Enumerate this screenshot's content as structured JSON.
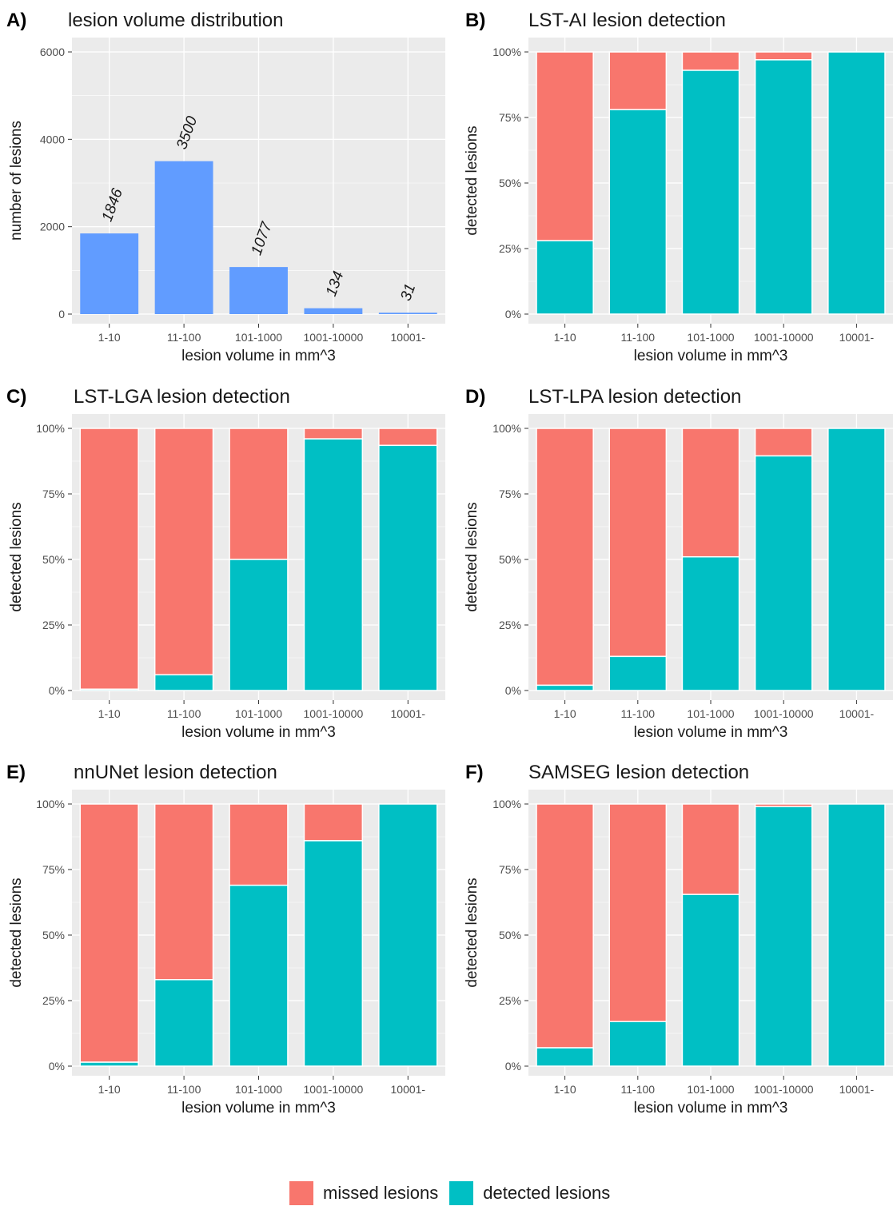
{
  "colors": {
    "missed": "#F8766D",
    "detected": "#00BFC4",
    "count_bar": "#619CFF",
    "panel_bg": "#EBEBEB",
    "grid": "#FFFFFF"
  },
  "legend": [
    {
      "key": "missed",
      "label": "missed lesions"
    },
    {
      "key": "detected",
      "label": "detected lesions"
    }
  ],
  "chart_data": [
    {
      "id": "A",
      "tag": "A)",
      "type": "bar",
      "title": "lesion volume distribution",
      "xlabel": "lesion volume in mm^3",
      "ylabel": "number of lesions",
      "categories": [
        "1-10",
        "11-100",
        "101-1000",
        "1001-10000",
        "10001-"
      ],
      "values": [
        1846,
        3500,
        1077,
        134,
        31
      ],
      "data_labels": [
        "1846",
        "3500",
        "1077",
        "134",
        "31"
      ],
      "ylim": [
        0,
        6000
      ],
      "yticks": [
        0,
        2000,
        4000,
        6000
      ],
      "ytick_labels": [
        "0",
        "2000",
        "4000",
        "6000"
      ],
      "grid": true
    },
    {
      "id": "B",
      "tag": "B)",
      "type": "bar",
      "stacked": true,
      "title": "LST-AI lesion detection",
      "xlabel": "lesion volume in mm^3",
      "ylabel": "detected lesions",
      "categories": [
        "1-10",
        "11-100",
        "101-1000",
        "1001-10000",
        "10001-"
      ],
      "series": [
        {
          "key": "detected",
          "values": [
            0.28,
            0.78,
            0.93,
            0.97,
            1.0
          ]
        },
        {
          "key": "missed",
          "values": [
            0.72,
            0.22,
            0.07,
            0.03,
            0.0
          ]
        }
      ],
      "ylim": [
        0,
        1
      ],
      "ytick_labels": [
        "0%",
        "25%",
        "50%",
        "75%",
        "100%"
      ],
      "grid": true
    },
    {
      "id": "C",
      "tag": "C)",
      "type": "bar",
      "stacked": true,
      "title": "LST-LGA lesion detection",
      "xlabel": "lesion volume in mm^3",
      "ylabel": "detected lesions",
      "categories": [
        "1-10",
        "11-100",
        "101-1000",
        "1001-10000",
        "10001-"
      ],
      "series": [
        {
          "key": "detected",
          "values": [
            0.005,
            0.06,
            0.5,
            0.96,
            0.935
          ]
        },
        {
          "key": "missed",
          "values": [
            0.995,
            0.94,
            0.5,
            0.04,
            0.065
          ]
        }
      ],
      "ylim": [
        0,
        1
      ],
      "ytick_labels": [
        "0%",
        "25%",
        "50%",
        "75%",
        "100%"
      ],
      "grid": true
    },
    {
      "id": "D",
      "tag": "D)",
      "type": "bar",
      "stacked": true,
      "title": "LST-LPA lesion detection",
      "xlabel": "lesion volume in mm^3",
      "ylabel": "detected lesions",
      "categories": [
        "1-10",
        "11-100",
        "101-1000",
        "1001-10000",
        "10001-"
      ],
      "series": [
        {
          "key": "detected",
          "values": [
            0.02,
            0.13,
            0.51,
            0.895,
            1.0
          ]
        },
        {
          "key": "missed",
          "values": [
            0.98,
            0.87,
            0.49,
            0.105,
            0.0
          ]
        }
      ],
      "ylim": [
        0,
        1
      ],
      "ytick_labels": [
        "0%",
        "25%",
        "50%",
        "75%",
        "100%"
      ],
      "grid": true
    },
    {
      "id": "E",
      "tag": "E)",
      "type": "bar",
      "stacked": true,
      "title": "nnUNet lesion detection",
      "xlabel": "lesion volume in mm^3",
      "ylabel": "detected lesions",
      "categories": [
        "1-10",
        "11-100",
        "101-1000",
        "1001-10000",
        "10001-"
      ],
      "series": [
        {
          "key": "detected",
          "values": [
            0.015,
            0.33,
            0.69,
            0.86,
            1.0
          ]
        },
        {
          "key": "missed",
          "values": [
            0.985,
            0.67,
            0.31,
            0.14,
            0.0
          ]
        }
      ],
      "ylim": [
        0,
        1
      ],
      "ytick_labels": [
        "0%",
        "25%",
        "50%",
        "75%",
        "100%"
      ],
      "grid": true
    },
    {
      "id": "F",
      "tag": "F)",
      "type": "bar",
      "stacked": true,
      "title": "SAMSEG lesion detection",
      "xlabel": "lesion volume in mm^3",
      "ylabel": "detected lesions",
      "categories": [
        "1-10",
        "11-100",
        "101-1000",
        "1001-10000",
        "10001-"
      ],
      "series": [
        {
          "key": "detected",
          "values": [
            0.07,
            0.17,
            0.655,
            0.99,
            1.0
          ]
        },
        {
          "key": "missed",
          "values": [
            0.93,
            0.83,
            0.345,
            0.01,
            0.0
          ]
        }
      ],
      "ylim": [
        0,
        1
      ],
      "ytick_labels": [
        "0%",
        "25%",
        "50%",
        "75%",
        "100%"
      ],
      "grid": true
    }
  ]
}
